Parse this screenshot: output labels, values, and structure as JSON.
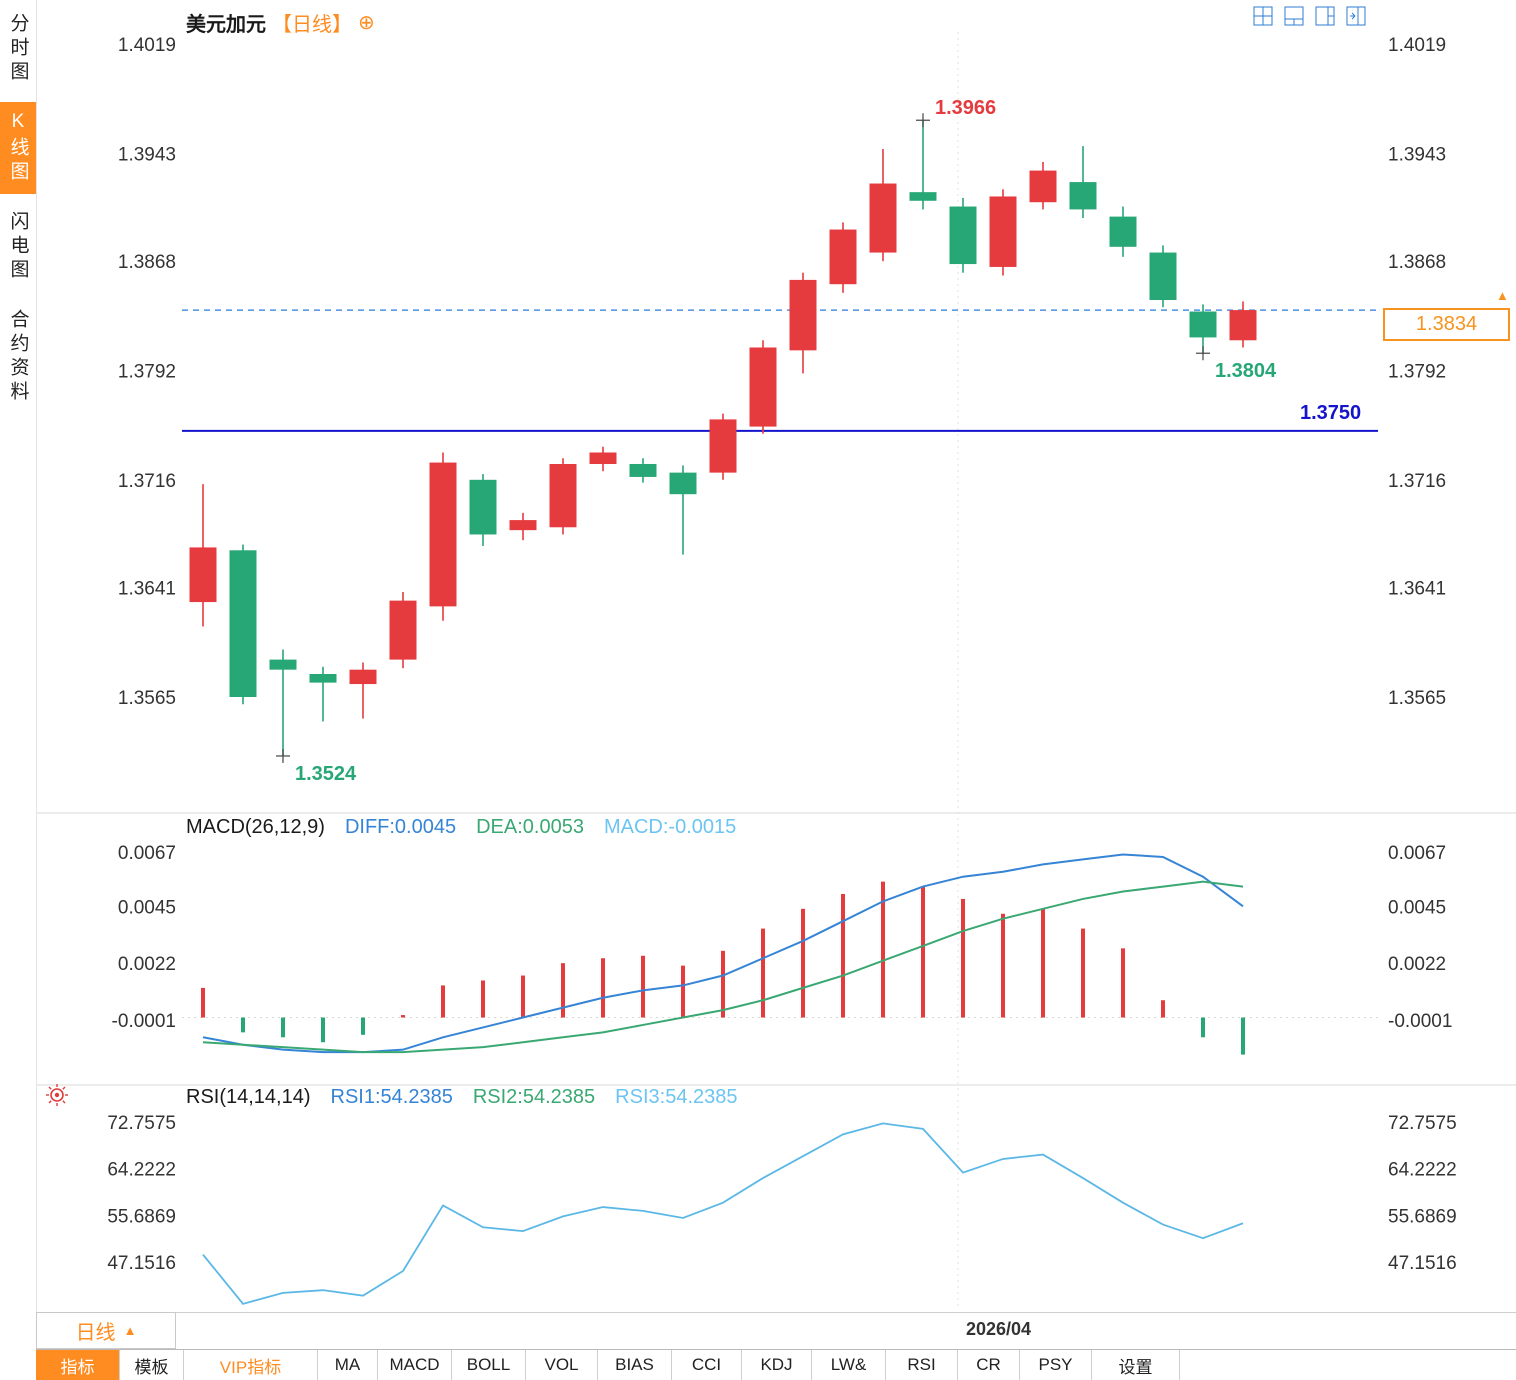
{
  "sidebar": {
    "items": [
      {
        "label": "分时图",
        "active": false
      },
      {
        "label": "K线图",
        "active": true
      },
      {
        "label": "闪电图",
        "active": false
      },
      {
        "label": "合约资料",
        "active": false
      }
    ]
  },
  "header": {
    "symbol": "美元加元",
    "period_tag": "【日线】",
    "add_icon": "⊕"
  },
  "top_toolbar": {
    "icons": [
      "layout-quad-icon",
      "layout-bottom-panel-icon",
      "layout-right-panel-icon",
      "layout-split-icon"
    ]
  },
  "overlays": {
    "support_line": {
      "value": 1.375,
      "label": "1.3750",
      "color": "#1414cc"
    },
    "current_price": {
      "value": 1.3834,
      "label": "1.3834",
      "color": "#f7931e",
      "arrow": "▲"
    },
    "annotations": [
      {
        "type": "high",
        "index": 18,
        "label": "1.3966",
        "color": "#e53b3f"
      },
      {
        "type": "low",
        "index": 2,
        "label": "1.3524",
        "color": "#28a776"
      },
      {
        "type": "low",
        "index": 25,
        "label": "1.3804",
        "color": "#28a776"
      }
    ]
  },
  "macd_header": {
    "title": "MACD(26,12,9)",
    "diff": "DIFF:0.0045",
    "dea": "DEA:0.0053",
    "macd": "MACD:-0.0015"
  },
  "rsi_header": {
    "title": "RSI(14,14,14)",
    "rsi1": "RSI1:54.2385",
    "rsi2": "RSI2:54.2385",
    "rsi3": "RSI3:54.2385"
  },
  "timeline": {
    "date_label": "2026/04"
  },
  "period_box": {
    "label": "日线",
    "arrow": "▲"
  },
  "bottom_tabs": [
    {
      "label": "指标",
      "state": "active"
    },
    {
      "label": "模板",
      "state": "normal"
    },
    {
      "label": "VIP指标",
      "state": "vip"
    },
    {
      "label": "MA",
      "state": "normal"
    },
    {
      "label": "MACD",
      "state": "normal"
    },
    {
      "label": "BOLL",
      "state": "normal"
    },
    {
      "label": "VOL",
      "state": "normal"
    },
    {
      "label": "BIAS",
      "state": "normal"
    },
    {
      "label": "CCI",
      "state": "normal"
    },
    {
      "label": "KDJ",
      "state": "normal"
    },
    {
      "label": "LW&",
      "state": "normal"
    },
    {
      "label": "RSI",
      "state": "normal"
    },
    {
      "label": "CR",
      "state": "normal"
    },
    {
      "label": "PSY",
      "state": "normal"
    },
    {
      "label": "设置",
      "state": "normal"
    }
  ],
  "colors": {
    "up": "#e53b3f",
    "down": "#28a776",
    "diff": "#3584d6",
    "dea": "#3aa873",
    "macd_text": "#6cc4f2",
    "rsi_line": "#5bb8e6",
    "accent": "#ff8c21",
    "grid": "#e2e2e2",
    "axis_text": "#333333",
    "support_blue": "#1414cc",
    "dashed_blue": "#4a90e2"
  },
  "chart_data": [
    {
      "type": "candlestick",
      "title": "美元加元 日线",
      "y_axis": [
        1.4019,
        1.3943,
        1.3868,
        1.3792,
        1.3716,
        1.3641,
        1.3565
      ],
      "x_axis_label": "2026/04",
      "high": 1.3966,
      "low": 1.3524,
      "last_price": 1.3834,
      "hline": 1.375,
      "candles": [
        [
          1.3631,
          1.3669,
          1.3713,
          1.3614
        ],
        [
          1.3667,
          1.3565,
          1.3671,
          1.356
        ],
        [
          1.3591,
          1.3584,
          1.3598,
          1.3524
        ],
        [
          1.3581,
          1.3575,
          1.3586,
          1.3548
        ],
        [
          1.3574,
          1.3584,
          1.3589,
          1.355
        ],
        [
          1.3591,
          1.3632,
          1.3638,
          1.3585
        ],
        [
          1.3628,
          1.3728,
          1.3735,
          1.3618
        ],
        [
          1.3716,
          1.3678,
          1.372,
          1.367
        ],
        [
          1.3681,
          1.3688,
          1.3693,
          1.3674
        ],
        [
          1.3683,
          1.3727,
          1.3731,
          1.3678
        ],
        [
          1.3727,
          1.3735,
          1.3739,
          1.3722
        ],
        [
          1.3727,
          1.3718,
          1.3731,
          1.3714
        ],
        [
          1.3721,
          1.3706,
          1.3726,
          1.3664
        ],
        [
          1.3721,
          1.3758,
          1.3762,
          1.3716
        ],
        [
          1.3753,
          1.3808,
          1.3813,
          1.3748
        ],
        [
          1.3806,
          1.3855,
          1.386,
          1.379
        ],
        [
          1.3852,
          1.389,
          1.3895,
          1.3846
        ],
        [
          1.3874,
          1.3922,
          1.3946,
          1.3868
        ],
        [
          1.3916,
          1.391,
          1.3966,
          1.3904
        ],
        [
          1.3906,
          1.3866,
          1.3912,
          1.386
        ],
        [
          1.3864,
          1.3913,
          1.3918,
          1.3858
        ],
        [
          1.3909,
          1.3931,
          1.3937,
          1.3904
        ],
        [
          1.3923,
          1.3904,
          1.3948,
          1.3898
        ],
        [
          1.3899,
          1.3878,
          1.3906,
          1.3871
        ],
        [
          1.3874,
          1.3841,
          1.3879,
          1.3836
        ],
        [
          1.3833,
          1.3815,
          1.3838,
          1.3804
        ],
        [
          1.3813,
          1.3834,
          1.384,
          1.3808
        ]
      ]
    },
    {
      "type": "bar",
      "name": "MACD",
      "params": "26,12,9",
      "diff_last": 0.0045,
      "dea_last": 0.0053,
      "macd_last": -0.0015,
      "y_axis": [
        0.0067,
        0.0045,
        0.0022,
        -0.0001
      ],
      "histogram": [
        0.0012,
        -0.0006,
        -0.0008,
        -0.001,
        -0.0007,
        0.0001,
        0.0013,
        0.0015,
        0.0017,
        0.0022,
        0.0024,
        0.0025,
        0.0021,
        0.0027,
        0.0036,
        0.0044,
        0.005,
        0.0055,
        0.0053,
        0.0048,
        0.0042,
        0.0044,
        0.0036,
        0.0028,
        0.0007,
        -0.0008,
        -0.0015
      ],
      "series": [
        {
          "name": "DIFF",
          "values": [
            -0.0008,
            -0.0011,
            -0.0013,
            -0.0014,
            -0.0014,
            -0.0013,
            -0.0008,
            -0.0004,
            0.0,
            0.0004,
            0.0008,
            0.0011,
            0.0013,
            0.0017,
            0.0024,
            0.0031,
            0.0039,
            0.0047,
            0.0053,
            0.0057,
            0.0059,
            0.0062,
            0.0064,
            0.0066,
            0.0065,
            0.0057,
            0.0045
          ]
        },
        {
          "name": "DEA",
          "values": [
            -0.001,
            -0.0011,
            -0.0012,
            -0.0013,
            -0.0014,
            -0.0014,
            -0.0013,
            -0.0012,
            -0.001,
            -0.0008,
            -0.0006,
            -0.0003,
            0.0,
            0.0003,
            0.0007,
            0.0012,
            0.0017,
            0.0023,
            0.0029,
            0.0035,
            0.004,
            0.0044,
            0.0048,
            0.0051,
            0.0053,
            0.0055,
            0.0053
          ]
        }
      ]
    },
    {
      "type": "line",
      "name": "RSI",
      "params": "14,14,14",
      "last": 54.2385,
      "y_axis": [
        72.7575,
        64.2222,
        55.6869,
        47.1516
      ],
      "values": [
        48.5,
        39.5,
        41.5,
        42.0,
        41.0,
        45.5,
        57.5,
        53.5,
        52.8,
        55.5,
        57.2,
        56.5,
        55.2,
        58.0,
        62.5,
        66.5,
        70.5,
        72.5,
        71.5,
        63.5,
        66.0,
        66.8,
        62.5,
        58.0,
        54.0,
        51.5,
        54.24
      ]
    }
  ]
}
